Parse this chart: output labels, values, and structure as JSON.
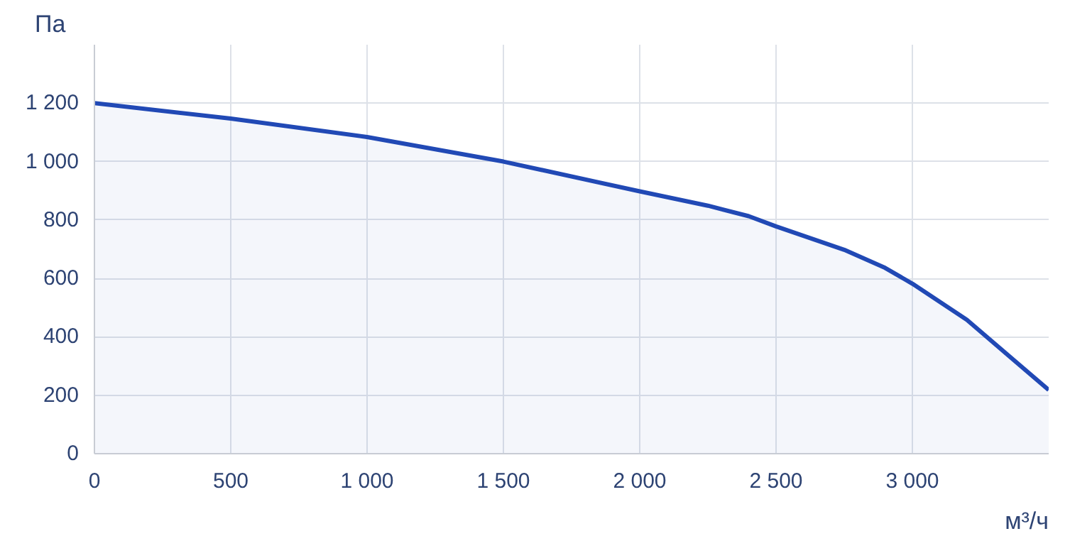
{
  "chart_data": {
    "type": "area",
    "xlabel": "м³/ч",
    "ylabel": "Па",
    "x": [
      0,
      500,
      1000,
      1500,
      2000,
      2250,
      2400,
      2500,
      2750,
      2900,
      3000,
      3200,
      3500
    ],
    "series": [
      {
        "color": "#2149b5",
        "values": [
          1200,
          1147,
          1084,
          1000,
          898,
          849,
          813,
          778,
          698,
          636,
          582,
          458,
          218
        ]
      }
    ],
    "xlim": [
      0,
      3500
    ],
    "ylim": [
      0,
      1400
    ],
    "xticks": [
      0,
      500,
      {
        "value": 1000,
        "label": "1 000"
      },
      {
        "value": 1500,
        "label": "1 500"
      },
      {
        "value": 2000,
        "label": "2 000"
      },
      {
        "value": 2500,
        "label": "2 500"
      },
      {
        "value": 3000,
        "label": "3 000"
      }
    ],
    "yticks": [
      0,
      200,
      400,
      600,
      800,
      {
        "value": 1000,
        "label": "1 000"
      },
      {
        "value": 1200,
        "label": "1 200"
      }
    ],
    "grid": true
  }
}
